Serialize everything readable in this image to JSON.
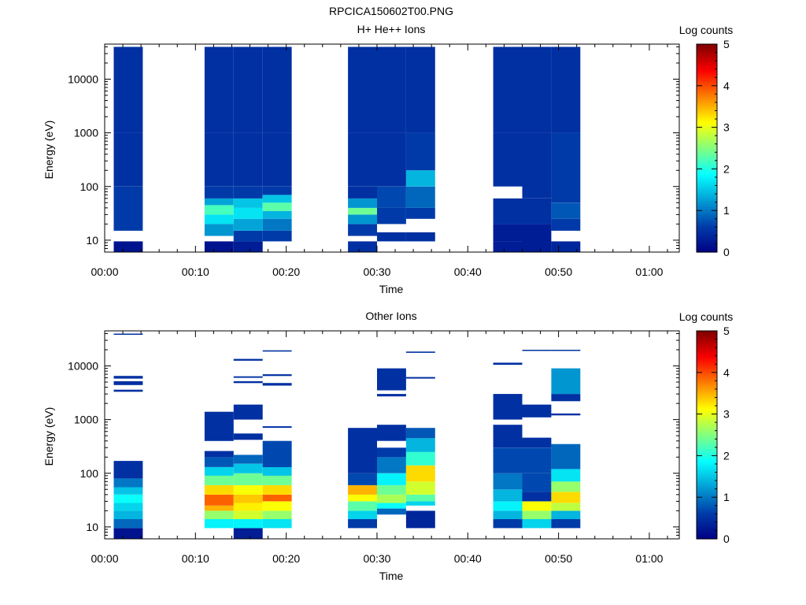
{
  "figure_title": "RPCICA150602T00.PNG",
  "chart_data": [
    {
      "type": "heatmap",
      "title": "H+ He++ Ions",
      "xlabel": "Time",
      "ylabel": "Energy (eV)",
      "x_ticks": [
        "00:00",
        "00:10",
        "00:20",
        "00:30",
        "00:40",
        "00:50",
        "01:00"
      ],
      "x_range_minutes": [
        0,
        63.3
      ],
      "y_scale": "log",
      "y_range": [
        6,
        45000
      ],
      "y_ticks": [
        {
          "value": 10,
          "label": "10"
        },
        {
          "value": 100,
          "label": "100"
        },
        {
          "value": 1000,
          "label": "1000"
        },
        {
          "value": 10000,
          "label": "10000"
        }
      ],
      "colorbar": {
        "label": "Log counts",
        "range": [
          0,
          5
        ],
        "ticks": [
          "0",
          "1",
          "2",
          "3",
          "4",
          "5"
        ]
      },
      "columns": [
        {
          "t0": 1.0,
          "t1": 4.2,
          "bands": [
            [
              6,
              9.5,
              0.2
            ],
            [
              15,
              100,
              0.6
            ],
            [
              100,
              1000,
              0.5
            ],
            [
              1000,
              10000,
              0.5
            ],
            [
              10000,
              40000,
              0.5
            ]
          ]
        },
        {
          "t0": 11.0,
          "t1": 14.2,
          "bands": [
            [
              6,
              9.5,
              0.2
            ],
            [
              12,
              20,
              1.2
            ],
            [
              20,
              30,
              1.7
            ],
            [
              30,
              45,
              2.2
            ],
            [
              45,
              60,
              1.3
            ],
            [
              60,
              100,
              0.6
            ],
            [
              100,
              1000,
              0.5
            ],
            [
              1000,
              10000,
              0.5
            ],
            [
              10000,
              40000,
              0.5
            ]
          ]
        },
        {
          "t0": 14.2,
          "t1": 17.4,
          "bands": [
            [
              6,
              9.5,
              0.3
            ],
            [
              9.5,
              15,
              0.6
            ],
            [
              15,
              25,
              1.3
            ],
            [
              25,
              40,
              1.7
            ],
            [
              40,
              60,
              1.5
            ],
            [
              60,
              100,
              0.6
            ],
            [
              100,
              1000,
              0.5
            ],
            [
              1000,
              10000,
              0.5
            ],
            [
              10000,
              40000,
              0.5
            ]
          ]
        },
        {
          "t0": 17.4,
          "t1": 20.6,
          "bands": [
            [
              9.5,
              15,
              0.6
            ],
            [
              15,
              25,
              1.0
            ],
            [
              25,
              35,
              1.4
            ],
            [
              35,
              50,
              2.3
            ],
            [
              50,
              70,
              1.5
            ],
            [
              70,
              100,
              0.6
            ],
            [
              100,
              1000,
              0.5
            ],
            [
              1000,
              10000,
              0.5
            ],
            [
              10000,
              40000,
              0.5
            ]
          ]
        },
        {
          "t0": 26.8,
          "t1": 30.0,
          "bands": [
            [
              6,
              9.5,
              0.5
            ],
            [
              12,
              20,
              0.6
            ],
            [
              20,
              30,
              1.2
            ],
            [
              30,
              40,
              2.4
            ],
            [
              40,
              60,
              1.2
            ],
            [
              60,
              100,
              0.5
            ],
            [
              100,
              1000,
              0.5
            ],
            [
              1000,
              10000,
              0.5
            ],
            [
              10000,
              40000,
              0.5
            ]
          ]
        },
        {
          "t0": 30.0,
          "t1": 33.2,
          "bands": [
            [
              9.5,
              14,
              0.5
            ],
            [
              20,
              40,
              0.6
            ],
            [
              40,
              100,
              0.7
            ],
            [
              100,
              1000,
              0.5
            ],
            [
              1000,
              10000,
              0.5
            ],
            [
              10000,
              40000,
              0.5
            ]
          ]
        },
        {
          "t0": 33.2,
          "t1": 36.4,
          "bands": [
            [
              9.5,
              14,
              0.5
            ],
            [
              25,
              40,
              0.6
            ],
            [
              40,
              100,
              0.9
            ],
            [
              100,
              200,
              1.4
            ],
            [
              200,
              1000,
              0.6
            ],
            [
              1000,
              10000,
              0.5
            ],
            [
              10000,
              40000,
              0.5
            ]
          ]
        },
        {
          "t0": 42.8,
          "t1": 46.0,
          "bands": [
            [
              6,
              9.5,
              0.3
            ],
            [
              9.5,
              20,
              0.3
            ],
            [
              20,
              60,
              0.5
            ],
            [
              100,
              1000,
              0.5
            ],
            [
              1000,
              10000,
              0.5
            ],
            [
              10000,
              40000,
              0.5
            ]
          ]
        },
        {
          "t0": 46.0,
          "t1": 49.2,
          "bands": [
            [
              6,
              20,
              0.3
            ],
            [
              20,
              60,
              0.5
            ],
            [
              60,
              1000,
              0.5
            ],
            [
              1000,
              10000,
              0.5
            ],
            [
              10000,
              40000,
              0.5
            ]
          ]
        },
        {
          "t0": 49.2,
          "t1": 52.4,
          "bands": [
            [
              6,
              9.5,
              0.4
            ],
            [
              15,
              25,
              0.6
            ],
            [
              25,
              50,
              0.8
            ],
            [
              50,
              1000,
              0.6
            ],
            [
              1000,
              10000,
              0.5
            ],
            [
              10000,
              40000,
              0.5
            ]
          ]
        }
      ]
    },
    {
      "type": "heatmap",
      "title": "Other Ions",
      "xlabel": "Time",
      "ylabel": "Energy (eV)",
      "x_ticks": [
        "00:00",
        "00:10",
        "00:20",
        "00:30",
        "00:40",
        "00:50",
        "01:00"
      ],
      "x_range_minutes": [
        0,
        63.3
      ],
      "y_scale": "log",
      "y_range": [
        6,
        45000
      ],
      "y_ticks": [
        {
          "value": 10,
          "label": "10"
        },
        {
          "value": 100,
          "label": "100"
        },
        {
          "value": 1000,
          "label": "1000"
        },
        {
          "value": 10000,
          "label": "10000"
        }
      ],
      "colorbar": {
        "label": "Log counts",
        "range": [
          0,
          5
        ],
        "ticks": [
          "0",
          "1",
          "2",
          "3",
          "4",
          "5"
        ]
      },
      "columns": [
        {
          "t0": 1.0,
          "t1": 4.2,
          "bands": [
            [
              6,
              9.5,
              0.2
            ],
            [
              9.5,
              14,
              0.9
            ],
            [
              14,
              20,
              1.4
            ],
            [
              20,
              28,
              1.6
            ],
            [
              28,
              40,
              1.9
            ],
            [
              40,
              55,
              1.5
            ],
            [
              55,
              80,
              1.0
            ],
            [
              80,
              170,
              0.5
            ],
            [
              3300,
              3600,
              0.5
            ],
            [
              4400,
              5200,
              0.5
            ],
            [
              5800,
              6500,
              0.5
            ],
            [
              38000,
              40000,
              0.5
            ]
          ]
        },
        {
          "t0": 11.0,
          "t1": 14.2,
          "bands": [
            [
              9.5,
              14,
              1.8
            ],
            [
              14,
              20,
              2.6
            ],
            [
              20,
              25,
              3.5
            ],
            [
              25,
              40,
              3.9
            ],
            [
              40,
              60,
              3.3
            ],
            [
              60,
              90,
              2.4
            ],
            [
              90,
              130,
              1.6
            ],
            [
              130,
              200,
              0.8
            ],
            [
              200,
              260,
              0.5
            ],
            [
              400,
              1400,
              0.5
            ]
          ]
        },
        {
          "t0": 14.2,
          "t1": 17.4,
          "bands": [
            [
              6,
              9.5,
              0.3
            ],
            [
              9.5,
              14,
              1.8
            ],
            [
              14,
              20,
              2.9
            ],
            [
              20,
              28,
              3.2
            ],
            [
              28,
              40,
              3.4
            ],
            [
              40,
              60,
              3.1
            ],
            [
              60,
              100,
              2.4
            ],
            [
              100,
              150,
              1.5
            ],
            [
              150,
              220,
              0.9
            ],
            [
              420,
              550,
              0.5
            ],
            [
              1000,
              1900,
              0.5
            ],
            [
              4800,
              5200,
              0.5
            ],
            [
              6000,
              6400,
              0.5
            ],
            [
              12500,
              13500,
              0.5
            ]
          ]
        },
        {
          "t0": 17.4,
          "t1": 20.6,
          "bands": [
            [
              9.5,
              14,
              1.7
            ],
            [
              14,
              20,
              2.6
            ],
            [
              20,
              30,
              3.1
            ],
            [
              30,
              40,
              3.9
            ],
            [
              40,
              60,
              3.3
            ],
            [
              60,
              90,
              2.4
            ],
            [
              90,
              130,
              1.5
            ],
            [
              130,
              400,
              0.7
            ],
            [
              700,
              750,
              0.5
            ],
            [
              4300,
              4800,
              0.5
            ],
            [
              6500,
              7000,
              0.5
            ],
            [
              18500,
              19500,
              0.5
            ]
          ]
        },
        {
          "t0": 26.8,
          "t1": 30.0,
          "bands": [
            [
              9.5,
              14,
              0.6
            ],
            [
              14,
              20,
              1.6
            ],
            [
              20,
              30,
              2.3
            ],
            [
              30,
              40,
              3.1
            ],
            [
              40,
              60,
              3.5
            ],
            [
              60,
              100,
              0.7
            ],
            [
              100,
              700,
              0.5
            ]
          ]
        },
        {
          "t0": 30.0,
          "t1": 33.2,
          "bands": [
            [
              17,
              22,
              0.9
            ],
            [
              22,
              28,
              1.9
            ],
            [
              28,
              40,
              2.7
            ],
            [
              40,
              60,
              2.4
            ],
            [
              60,
              100,
              1.8
            ],
            [
              100,
              200,
              1.0
            ],
            [
              200,
              300,
              0.6
            ],
            [
              400,
              800,
              0.5
            ],
            [
              2700,
              3000,
              0.5
            ],
            [
              3500,
              9000,
              0.5
            ]
          ]
        },
        {
          "t0": 33.2,
          "t1": 36.4,
          "bands": [
            [
              9.5,
              20,
              0.4
            ],
            [
              25,
              30,
              1.6
            ],
            [
              30,
              40,
              2.3
            ],
            [
              40,
              70,
              2.9
            ],
            [
              70,
              140,
              3.3
            ],
            [
              140,
              250,
              2.1
            ],
            [
              250,
              450,
              1.4
            ],
            [
              450,
              700,
              0.8
            ],
            [
              5800,
              6200,
              0.5
            ],
            [
              17500,
              18500,
              0.5
            ]
          ]
        },
        {
          "t0": 42.8,
          "t1": 46.0,
          "bands": [
            [
              9.5,
              14,
              0.6
            ],
            [
              14,
              20,
              1.4
            ],
            [
              20,
              30,
              1.8
            ],
            [
              30,
              50,
              1.4
            ],
            [
              50,
              100,
              1.0
            ],
            [
              100,
              300,
              0.7
            ],
            [
              300,
              800,
              0.5
            ],
            [
              1000,
              3000,
              0.5
            ],
            [
              10500,
              11500,
              0.5
            ]
          ]
        },
        {
          "t0": 46.0,
          "t1": 49.2,
          "bands": [
            [
              9.5,
              14,
              1.6
            ],
            [
              14,
              20,
              2.6
            ],
            [
              20,
              30,
              3.1
            ],
            [
              30,
              45,
              0.5
            ],
            [
              45,
              100,
              0.7
            ],
            [
              100,
              300,
              0.7
            ],
            [
              300,
              460,
              0.5
            ],
            [
              1100,
              1900,
              0.5
            ],
            [
              19000,
              20000,
              0.5
            ]
          ]
        },
        {
          "t0": 49.2,
          "t1": 52.4,
          "bands": [
            [
              9.5,
              14,
              0.6
            ],
            [
              14,
              20,
              1.4
            ],
            [
              20,
              28,
              2.8
            ],
            [
              28,
              45,
              3.3
            ],
            [
              45,
              70,
              2.6
            ],
            [
              70,
              120,
              1.7
            ],
            [
              120,
              350,
              0.9
            ],
            [
              1200,
              1300,
              0.5
            ],
            [
              2200,
              3000,
              0.5
            ],
            [
              3000,
              9000,
              1.2
            ],
            [
              19000,
              20000,
              0.5
            ]
          ]
        }
      ]
    }
  ]
}
